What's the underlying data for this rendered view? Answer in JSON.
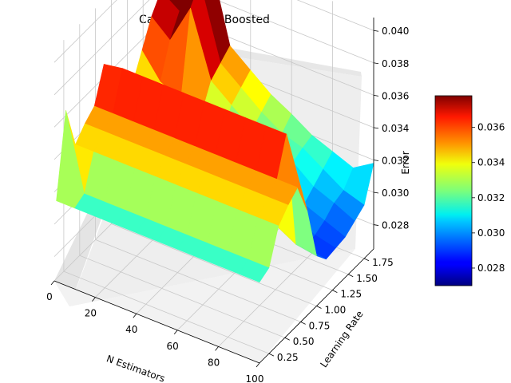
{
  "chart_data": {
    "type": "surface3d",
    "title": "Car Evaluation Boosted",
    "xlabel": "N Estimators",
    "ylabel": "Learning Rate",
    "zlabel": "Error",
    "xlim": [
      0,
      100
    ],
    "ylim": [
      0.1,
      1.9
    ],
    "zlim": [
      0.0265,
      0.0408
    ],
    "x_ticks": [
      "0",
      "20",
      "40",
      "60",
      "80",
      "100"
    ],
    "y_ticks": [
      "0.25",
      "0.50",
      "0.75",
      "1.00",
      "1.25",
      "1.50",
      "1.75"
    ],
    "z_ticks": [
      "0.028",
      "0.030",
      "0.032",
      "0.034",
      "0.036",
      "0.038",
      "0.040"
    ],
    "colormap": "jet",
    "colorbar": {
      "range": [
        0.027,
        0.0378
      ],
      "ticks": [
        "0.028",
        "0.030",
        "0.032",
        "0.034",
        "0.036"
      ],
      "placement": "right"
    },
    "grid": true,
    "series": [
      {
        "learning_rate": [
          0.1,
          0.25,
          0.4,
          0.55,
          0.7,
          0.85,
          1.0,
          1.15,
          1.3,
          1.45,
          1.6,
          1.75,
          1.9
        ],
        "n_estimators": [
          1,
          10,
          20,
          30,
          40,
          50,
          60,
          70,
          80,
          90,
          100
        ],
        "error": [
          [
            0.0315,
            0.0315,
            0.0315,
            0.0315,
            0.0315,
            0.0315,
            0.0315,
            0.0315,
            0.0315,
            0.0315,
            0.0315
          ],
          [
            0.0365,
            0.0318,
            0.0318,
            0.0318,
            0.0318,
            0.0318,
            0.0318,
            0.0318,
            0.0318,
            0.0318,
            0.0318
          ],
          [
            0.0338,
            0.0338,
            0.0338,
            0.0338,
            0.0338,
            0.0338,
            0.0338,
            0.0338,
            0.0338,
            0.0338,
            0.0338
          ],
          [
            0.0345,
            0.0345,
            0.0345,
            0.0345,
            0.0345,
            0.0345,
            0.0345,
            0.0345,
            0.0345,
            0.0345,
            0.0345
          ],
          [
            0.035,
            0.035,
            0.035,
            0.035,
            0.035,
            0.035,
            0.035,
            0.035,
            0.035,
            0.035,
            0.035
          ],
          [
            0.037,
            0.0372,
            0.0372,
            0.0372,
            0.0372,
            0.0372,
            0.0372,
            0.0372,
            0.0372,
            0.0372,
            0.033
          ],
          [
            0.0345,
            0.0335,
            0.034,
            0.0338,
            0.0335,
            0.0322,
            0.0318,
            0.0312,
            0.0305,
            0.0298,
            0.0296
          ],
          [
            0.033,
            0.032,
            0.0325,
            0.0323,
            0.0318,
            0.0312,
            0.0305,
            0.03,
            0.0295,
            0.029,
            0.0288
          ],
          [
            0.034,
            0.033,
            0.0345,
            0.0325,
            0.032,
            0.0315,
            0.031,
            0.0305,
            0.0298,
            0.0292,
            0.0289
          ],
          [
            0.0355,
            0.034,
            0.0335,
            0.033,
            0.0324,
            0.032,
            0.0315,
            0.0309,
            0.03,
            0.0295,
            0.029
          ],
          [
            0.037,
            0.036,
            0.0385,
            0.0345,
            0.0335,
            0.0325,
            0.032,
            0.0315,
            0.0305,
            0.03,
            0.0294
          ],
          [
            0.038,
            0.0372,
            0.0395,
            0.035,
            0.034,
            0.033,
            0.0322,
            0.0318,
            0.031,
            0.0302,
            0.0298
          ],
          [
            0.0385,
            0.0378,
            0.0405,
            0.0355,
            0.0345,
            0.0335,
            0.0328,
            0.032,
            0.0315,
            0.031,
            0.0318
          ]
        ]
      }
    ]
  }
}
